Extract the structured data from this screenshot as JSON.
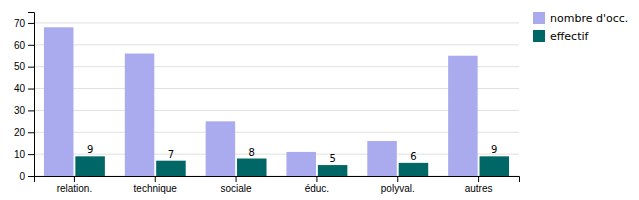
{
  "chart_data": {
    "type": "bar",
    "categories": [
      "relation.",
      "technique",
      "sociale",
      "éduc.",
      "polyval.",
      "autres"
    ],
    "series": [
      {
        "name": "nombre d'occ.",
        "color": "#aaaaee",
        "values": [
          68,
          56,
          25,
          11,
          16,
          55
        ]
      },
      {
        "name": "effectif",
        "color": "#006666",
        "values": [
          9,
          7,
          8,
          5,
          6,
          9
        ],
        "data_labels": true
      }
    ],
    "ylim": [
      0,
      75
    ],
    "yticks": [
      0,
      10,
      20,
      30,
      40,
      50,
      60,
      70
    ],
    "grid": true,
    "legend": "upper right"
  }
}
